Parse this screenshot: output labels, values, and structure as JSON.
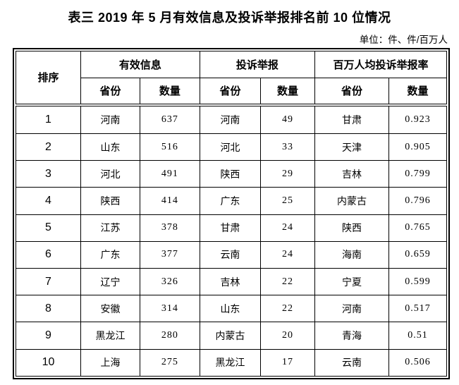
{
  "page": {
    "title": "表三 2019 年 5 月有效信息及投诉举报排名前 10 位情况",
    "unit_note": "单位：件、件/百万人"
  },
  "table": {
    "header": {
      "rank": "排序",
      "groups": [
        {
          "label": "有效信息",
          "sub": [
            "省份",
            "数量"
          ]
        },
        {
          "label": "投诉举报",
          "sub": [
            "省份",
            "数量"
          ]
        },
        {
          "label": "百万人均投诉举报率",
          "sub": [
            "省份",
            "数量"
          ]
        }
      ]
    },
    "rows": [
      {
        "rank": "1",
        "valid_info": {
          "province": "河南",
          "count": "637"
        },
        "complaints": {
          "province": "河南",
          "count": "49"
        },
        "per_million_rate": {
          "province": "甘肃",
          "rate": "0.923"
        }
      },
      {
        "rank": "2",
        "valid_info": {
          "province": "山东",
          "count": "516"
        },
        "complaints": {
          "province": "河北",
          "count": "33"
        },
        "per_million_rate": {
          "province": "天津",
          "rate": "0.905"
        }
      },
      {
        "rank": "3",
        "valid_info": {
          "province": "河北",
          "count": "491"
        },
        "complaints": {
          "province": "陕西",
          "count": "29"
        },
        "per_million_rate": {
          "province": "吉林",
          "rate": "0.799"
        }
      },
      {
        "rank": "4",
        "valid_info": {
          "province": "陕西",
          "count": "414"
        },
        "complaints": {
          "province": "广东",
          "count": "25"
        },
        "per_million_rate": {
          "province": "内蒙古",
          "rate": "0.796"
        }
      },
      {
        "rank": "5",
        "valid_info": {
          "province": "江苏",
          "count": "378"
        },
        "complaints": {
          "province": "甘肃",
          "count": "24"
        },
        "per_million_rate": {
          "province": "陕西",
          "rate": "0.765"
        }
      },
      {
        "rank": "6",
        "valid_info": {
          "province": "广东",
          "count": "377"
        },
        "complaints": {
          "province": "云南",
          "count": "24"
        },
        "per_million_rate": {
          "province": "海南",
          "rate": "0.659"
        }
      },
      {
        "rank": "7",
        "valid_info": {
          "province": "辽宁",
          "count": "326"
        },
        "complaints": {
          "province": "吉林",
          "count": "22"
        },
        "per_million_rate": {
          "province": "宁夏",
          "rate": "0.599"
        }
      },
      {
        "rank": "8",
        "valid_info": {
          "province": "安徽",
          "count": "314"
        },
        "complaints": {
          "province": "山东",
          "count": "22"
        },
        "per_million_rate": {
          "province": "河南",
          "rate": "0.517"
        }
      },
      {
        "rank": "9",
        "valid_info": {
          "province": "黑龙江",
          "count": "280"
        },
        "complaints": {
          "province": "内蒙古",
          "count": "20"
        },
        "per_million_rate": {
          "province": "青海",
          "rate": "0.51"
        }
      },
      {
        "rank": "10",
        "valid_info": {
          "province": "上海",
          "count": "275"
        },
        "complaints": {
          "province": "黑龙江",
          "count": "17"
        },
        "per_million_rate": {
          "province": "云南",
          "rate": "0.506"
        }
      }
    ]
  }
}
